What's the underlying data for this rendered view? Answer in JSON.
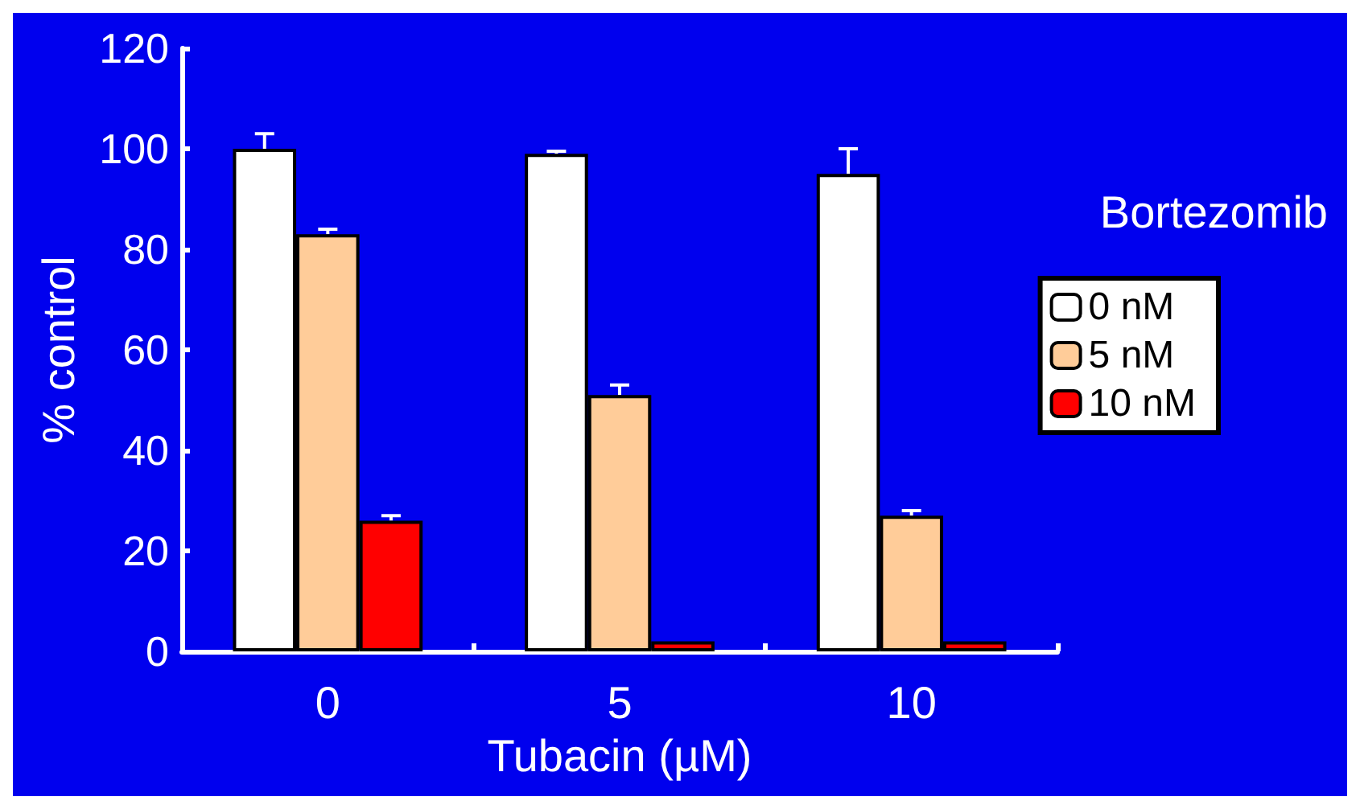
{
  "chart_data": {
    "type": "bar",
    "xlabel": "Tubacin (µM)",
    "ylabel": "% control",
    "legend_title": "Bortezomib",
    "categories": [
      "0",
      "5",
      "10"
    ],
    "series": [
      {
        "name": "0 nM",
        "color": "#ffffff",
        "values": [
          100,
          99,
          95
        ],
        "errors": [
          [
            100,
            103
          ],
          [
            99,
            99.5
          ],
          [
            95,
            100
          ]
        ]
      },
      {
        "name": "5 nM",
        "color": "#ffcc99",
        "values": [
          83,
          51,
          27
        ],
        "errors": [
          [
            83,
            84
          ],
          [
            51,
            53
          ],
          [
            27,
            28
          ]
        ]
      },
      {
        "name": "10 nM",
        "color": "#ff0000",
        "values": [
          26,
          2,
          2
        ],
        "errors": [
          [
            26,
            27
          ],
          null,
          null
        ]
      }
    ],
    "ylim": [
      0,
      120
    ],
    "yticks": [
      0,
      20,
      40,
      60,
      80,
      100,
      120
    ],
    "grid": false,
    "legend": "right"
  }
}
